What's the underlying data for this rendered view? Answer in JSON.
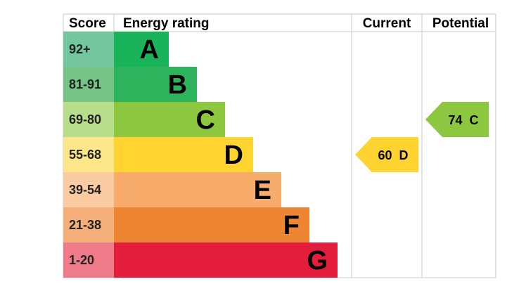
{
  "chart_data": {
    "type": "bar",
    "headers": {
      "score": "Score",
      "rating": "Energy rating",
      "current": "Current",
      "potential": "Potential"
    },
    "bands": [
      {
        "range": "92+",
        "letter": "A",
        "bar_color": "#19b45a",
        "score_color": "#74c69e"
      },
      {
        "range": "81-91",
        "letter": "B",
        "bar_color": "#2db35c",
        "score_color": "#76c485"
      },
      {
        "range": "69-80",
        "letter": "C",
        "bar_color": "#8dc63f",
        "score_color": "#b8dd8b"
      },
      {
        "range": "55-68",
        "letter": "D",
        "bar_color": "#ffd431",
        "score_color": "#fde78a"
      },
      {
        "range": "39-54",
        "letter": "E",
        "bar_color": "#f7ac6c",
        "score_color": "#fbcba2"
      },
      {
        "range": "21-38",
        "letter": "F",
        "bar_color": "#ee8532",
        "score_color": "#f4ae7a"
      },
      {
        "range": "1-20",
        "letter": "G",
        "bar_color": "#e31d3b",
        "score_color": "#ee7a8a"
      }
    ],
    "current": {
      "value": 60,
      "band": "D",
      "label": "60  D",
      "color": "#ffd431"
    },
    "potential": {
      "value": 74,
      "band": "C",
      "label": "74  C",
      "color": "#8dc63f"
    }
  }
}
